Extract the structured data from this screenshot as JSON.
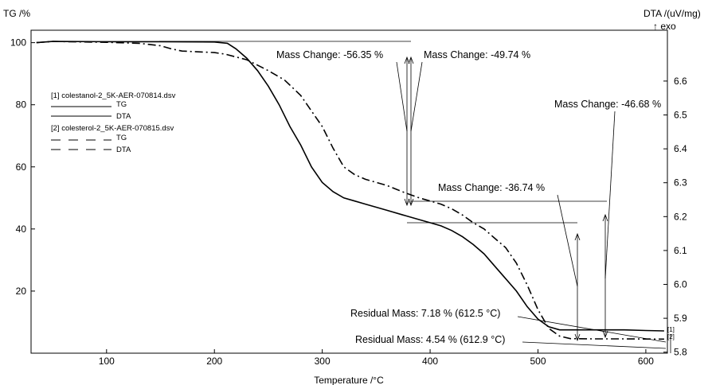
{
  "chart_data": {
    "type": "line",
    "title": "",
    "xlabel": "Temperature /°C",
    "ylabel_left": "TG /%",
    "ylabel_right_line1": "DTA /(uV/mg)",
    "ylabel_right_line2": "↑ exo",
    "xlim": [
      30,
      620
    ],
    "ylim_left": [
      0,
      104
    ],
    "ylim_right": [
      5.797,
      6.75
    ],
    "x_ticks": [
      100,
      200,
      300,
      400,
      500,
      600
    ],
    "y_ticks_left": [
      20,
      40,
      60,
      80,
      100
    ],
    "y_ticks_right": [
      5.8,
      5.9,
      6.0,
      6.1,
      6.2,
      6.3,
      6.4,
      6.5,
      6.6
    ],
    "y_tick_labels_right": [
      "5.8",
      "5.9",
      "6.0",
      "6.1",
      "6.2",
      "6.3",
      "6.4",
      "6.5",
      "6.6"
    ],
    "grid": false,
    "legend": {
      "placement": "upper-left",
      "entries": [
        {
          "file": "[1] colestanol-2_5K-AER-070814.dsv",
          "tg": "TG",
          "dta": "DTA"
        },
        {
          "file": "[2] colesterol-2_5K-AER-070815.dsv",
          "tg": "TG",
          "dta": "DTA"
        }
      ]
    },
    "series": [
      {
        "name": "[1] TG",
        "style": "solid",
        "points": [
          [
            35,
            100
          ],
          [
            50,
            100.4
          ],
          [
            100,
            100.3
          ],
          [
            150,
            100.3
          ],
          [
            200,
            100.2
          ],
          [
            212,
            99.8
          ],
          [
            220,
            98
          ],
          [
            230,
            95
          ],
          [
            240,
            91
          ],
          [
            250,
            86
          ],
          [
            260,
            80
          ],
          [
            270,
            73
          ],
          [
            280,
            67
          ],
          [
            290,
            60
          ],
          [
            300,
            55
          ],
          [
            310,
            52
          ],
          [
            320,
            50
          ],
          [
            330,
            49
          ],
          [
            340,
            48
          ],
          [
            350,
            47
          ],
          [
            360,
            46
          ],
          [
            375,
            44.5
          ],
          [
            390,
            43
          ],
          [
            400,
            42
          ],
          [
            410,
            41
          ],
          [
            420,
            39.5
          ],
          [
            430,
            37.5
          ],
          [
            440,
            35
          ],
          [
            450,
            32
          ],
          [
            460,
            28
          ],
          [
            470,
            24
          ],
          [
            480,
            20
          ],
          [
            490,
            15
          ],
          [
            500,
            11
          ],
          [
            510,
            8.5
          ],
          [
            520,
            7.5
          ],
          [
            540,
            7.5
          ],
          [
            560,
            7.5
          ],
          [
            580,
            7.5
          ],
          [
            600,
            7.3
          ],
          [
            617,
            7.18
          ]
        ]
      },
      {
        "name": "[2] TG",
        "style": "dash-dot",
        "points": [
          [
            35,
            100
          ],
          [
            50,
            100.4
          ],
          [
            100,
            100.1
          ],
          [
            130,
            99.8
          ],
          [
            150,
            99
          ],
          [
            160,
            98
          ],
          [
            170,
            97.3
          ],
          [
            200,
            96.8
          ],
          [
            210,
            96.3
          ],
          [
            230,
            94.5
          ],
          [
            250,
            91
          ],
          [
            265,
            88
          ],
          [
            280,
            83
          ],
          [
            290,
            78
          ],
          [
            300,
            73
          ],
          [
            310,
            66
          ],
          [
            320,
            60
          ],
          [
            330,
            57.5
          ],
          [
            340,
            56
          ],
          [
            350,
            55
          ],
          [
            360,
            54
          ],
          [
            375,
            51.9
          ],
          [
            390,
            50
          ],
          [
            400,
            49
          ],
          [
            410,
            48
          ],
          [
            420,
            46.5
          ],
          [
            430,
            44.5
          ],
          [
            440,
            42
          ],
          [
            450,
            40
          ],
          [
            460,
            37
          ],
          [
            470,
            34
          ],
          [
            480,
            29
          ],
          [
            490,
            22
          ],
          [
            500,
            14
          ],
          [
            510,
            8
          ],
          [
            520,
            5.5
          ],
          [
            530,
            4.7
          ],
          [
            550,
            4.6
          ],
          [
            580,
            4.6
          ],
          [
            600,
            4.55
          ],
          [
            617,
            4.54
          ]
        ]
      }
    ],
    "annotations": [
      {
        "text": "Mass Change: -56.35 %",
        "series": "[1] TG",
        "temp": 375
      },
      {
        "text": "Mass Change: -49.74 %",
        "series": "[2] TG",
        "temp": 375
      },
      {
        "text": "Mass Change: -46.68 %",
        "series": "[2] TG",
        "temp": 550
      },
      {
        "text": "Mass Change: -36.74 %",
        "series": "[1] TG",
        "temp": 528
      },
      {
        "text": "Residual Mass: 7.18 % (612.5 °C)",
        "series": "[1] TG"
      },
      {
        "text": "Residual Mass: 4.54 % (612.9 °C)",
        "series": "[2] TG"
      }
    ],
    "end_labels": [
      "[1]",
      "[2]"
    ]
  }
}
